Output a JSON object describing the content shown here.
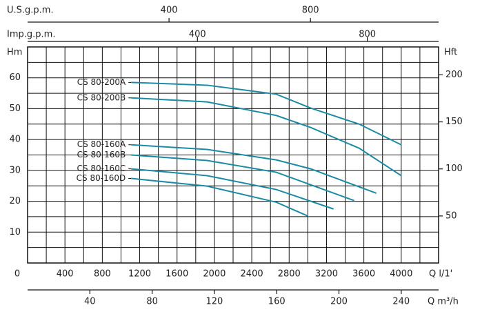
{
  "chart_data": {
    "type": "line",
    "xlabel": "Q l/1'",
    "xlim": [
      0,
      4400
    ],
    "xticks": [
      0,
      400,
      800,
      1200,
      1600,
      2000,
      2400,
      2800,
      3200,
      3600,
      4000
    ],
    "xgrid": [
      0,
      200,
      400,
      600,
      800,
      1000,
      1200,
      1400,
      1600,
      1800,
      2000,
      2200,
      2400,
      2600,
      2800,
      3000,
      3200,
      3400,
      3600,
      3800,
      4000,
      4200,
      4400
    ],
    "ylabel": "Hm",
    "ylim": [
      0,
      70
    ],
    "yticks": [
      10,
      20,
      30,
      40,
      50,
      60
    ],
    "ygrid": [
      0,
      5,
      10,
      15,
      20,
      25,
      30,
      35,
      40,
      45,
      50,
      55,
      60,
      65,
      70
    ],
    "y2label": "Hft",
    "y2lim": [
      0,
      229.66
    ],
    "y2ticks": [
      50,
      100,
      150,
      200
    ],
    "extra_x_axes": [
      {
        "label": "U.S.g.p.m.",
        "xlim": [
          0,
          1162.4
        ],
        "ticks": [
          400,
          800
        ]
      },
      {
        "label": "Imp.g.p.m.",
        "xlim": [
          0,
          967.9
        ],
        "ticks": [
          400,
          800
        ]
      },
      {
        "label": "Q m³/h",
        "xlim": [
          0,
          264
        ],
        "ticks": [
          40,
          80,
          120,
          160,
          200,
          240
        ]
      }
    ],
    "series": [
      {
        "name": "CS 80-200A",
        "color": "#1b8ba3",
        "x": [
          1109,
          1922,
          2662,
          3031,
          3549,
          4000
        ],
        "values": [
          58.5,
          57.6,
          54.7,
          50.2,
          45,
          38.3
        ]
      },
      {
        "name": "CS 80-200B",
        "color": "#1b8ba3",
        "x": [
          1109,
          1922,
          2662,
          3031,
          3549,
          4000
        ],
        "values": [
          53.5,
          52.2,
          47.8,
          43.9,
          37.2,
          28.3
        ]
      },
      {
        "name": "CS 80-160A",
        "color": "#1b8ba3",
        "x": [
          1109,
          1922,
          2662,
          3031,
          3734
        ],
        "values": [
          38.3,
          36.8,
          33.4,
          30.5,
          22.6
        ]
      },
      {
        "name": "CS 80-160B",
        "color": "#1b8ba3",
        "x": [
          1109,
          1922,
          2662,
          3497
        ],
        "values": [
          35,
          33.2,
          29.4,
          20.2
        ]
      },
      {
        "name": "CS 80-160C",
        "color": "#1b8ba3",
        "x": [
          1109,
          1922,
          2662,
          3275
        ],
        "values": [
          30.5,
          28.3,
          23.8,
          17.5
        ]
      },
      {
        "name": "CS 80-160D",
        "color": "#1b8ba3",
        "x": [
          1109,
          1922,
          2662,
          3002
        ],
        "values": [
          27.4,
          24.9,
          19.7,
          15.2
        ]
      }
    ]
  }
}
